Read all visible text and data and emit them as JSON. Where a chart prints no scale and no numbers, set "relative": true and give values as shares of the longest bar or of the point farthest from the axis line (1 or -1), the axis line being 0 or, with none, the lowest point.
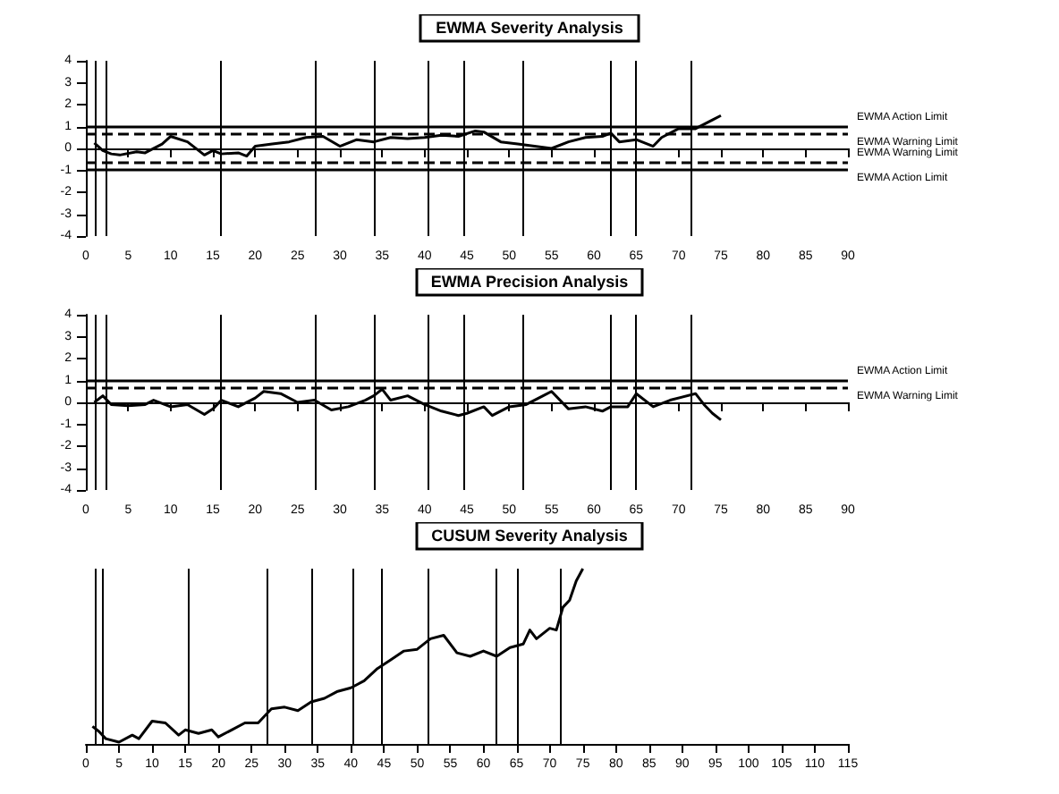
{
  "chart_data": [
    {
      "type": "line",
      "title": "EWMA Severity Analysis",
      "color": "#000000",
      "x": [
        1,
        2,
        3,
        4,
        6,
        7,
        9,
        10,
        12,
        14,
        15,
        16,
        18,
        19,
        20,
        22,
        24,
        26,
        28,
        30,
        32,
        34,
        36,
        38,
        40,
        42,
        44,
        46,
        47,
        49,
        51,
        53,
        55,
        57,
        59,
        61,
        62,
        63,
        65,
        67,
        68,
        70,
        72,
        74,
        75
      ],
      "values": [
        0.25,
        -0.1,
        -0.25,
        -0.3,
        -0.15,
        -0.2,
        0.2,
        0.55,
        0.3,
        -0.3,
        -0.1,
        -0.25,
        -0.2,
        -0.35,
        0.1,
        0.2,
        0.3,
        0.5,
        0.55,
        0.1,
        0.4,
        0.3,
        0.5,
        0.45,
        0.5,
        0.6,
        0.55,
        0.8,
        0.75,
        0.3,
        0.2,
        0.1,
        0,
        0.3,
        0.5,
        0.55,
        0.7,
        0.3,
        0.4,
        0.1,
        0.5,
        0.9,
        0.9,
        1.3,
        1.5
      ],
      "xlim": [
        0,
        90
      ],
      "xticks": [
        0,
        5,
        10,
        15,
        20,
        25,
        30,
        35,
        40,
        45,
        50,
        55,
        60,
        65,
        70,
        75,
        80,
        85,
        90
      ],
      "ylim": [
        -4,
        4
      ],
      "yticks": [
        -4,
        -3,
        -2,
        -1,
        0,
        1,
        2,
        3,
        4
      ],
      "ref_lines": [
        {
          "axis": "y",
          "value": 0.96,
          "label": "EWMA Action Limit",
          "line_style": "solid"
        },
        {
          "axis": "y",
          "value": 0.65,
          "label": "EWMA Warning Limit",
          "line_style": "dashed"
        },
        {
          "axis": "y",
          "value": -0.65,
          "label": "EWMA Warning Limit",
          "line_style": "dashed"
        },
        {
          "axis": "y",
          "value": -0.96,
          "label": "EWMA Action Limit",
          "line_style": "solid"
        },
        {
          "axis": "x",
          "value": 1.2,
          "label": null
        },
        {
          "axis": "x",
          "value": 2.3,
          "label": null
        },
        {
          "axis": "x",
          "value": 15.8,
          "label": null
        },
        {
          "axis": "x",
          "value": 27,
          "label": null
        },
        {
          "axis": "x",
          "value": 34,
          "label": null
        },
        {
          "axis": "x",
          "value": 40.5,
          "label": null
        },
        {
          "axis": "x",
          "value": 44.7,
          "label": null
        },
        {
          "axis": "x",
          "value": 51.7,
          "label": null
        },
        {
          "axis": "x",
          "value": 62,
          "label": null
        },
        {
          "axis": "x",
          "value": 65,
          "label": null
        },
        {
          "axis": "x",
          "value": 71.5,
          "label": null
        }
      ]
    },
    {
      "type": "line",
      "title": "EWMA Precision Analysis",
      "color": "#000000",
      "x": [
        1,
        2,
        3,
        5,
        7,
        8,
        10,
        12,
        14,
        15,
        16,
        18,
        20,
        21,
        23,
        25,
        27,
        29,
        31,
        33,
        34,
        35,
        36,
        38,
        40,
        42,
        44,
        45,
        47,
        48,
        50,
        52,
        54,
        55,
        57,
        59,
        61,
        62,
        64,
        65,
        67,
        69,
        72,
        73,
        74,
        75
      ],
      "values": [
        0,
        0.3,
        -0.1,
        -0.15,
        -0.1,
        0.1,
        -0.2,
        -0.1,
        -0.55,
        -0.3,
        0.1,
        -0.2,
        0.2,
        0.5,
        0.4,
        0,
        0.1,
        -0.35,
        -0.2,
        0.1,
        0.3,
        0.6,
        0.1,
        0.3,
        -0.1,
        -0.4,
        -0.6,
        -0.5,
        -0.2,
        -0.6,
        -0.2,
        -0.1,
        0.3,
        0.5,
        -0.3,
        -0.2,
        -0.4,
        -0.2,
        -0.2,
        0.4,
        -0.2,
        0.1,
        0.4,
        -0.1,
        -0.5,
        -0.8
      ],
      "xlim": [
        0,
        90
      ],
      "xticks": [
        0,
        5,
        10,
        15,
        20,
        25,
        30,
        35,
        40,
        45,
        50,
        55,
        60,
        65,
        70,
        75,
        80,
        85,
        90
      ],
      "ylim": [
        -4,
        4
      ],
      "yticks": [
        -4,
        -3,
        -2,
        -1,
        0,
        1,
        2,
        3,
        4
      ],
      "ref_lines": [
        {
          "axis": "y",
          "value": 0.98,
          "label": "EWMA Action Limit",
          "line_style": "solid"
        },
        {
          "axis": "y",
          "value": 0.65,
          "label": "EWMA Warning Limit",
          "line_style": "dashed"
        },
        {
          "axis": "x",
          "value": 1.2,
          "label": null
        },
        {
          "axis": "x",
          "value": 2.3,
          "label": null
        },
        {
          "axis": "x",
          "value": 15.8,
          "label": null
        },
        {
          "axis": "x",
          "value": 27,
          "label": null
        },
        {
          "axis": "x",
          "value": 34,
          "label": null
        },
        {
          "axis": "x",
          "value": 40.5,
          "label": null
        },
        {
          "axis": "x",
          "value": 44.7,
          "label": null
        },
        {
          "axis": "x",
          "value": 51.7,
          "label": null
        },
        {
          "axis": "x",
          "value": 62,
          "label": null
        },
        {
          "axis": "x",
          "value": 65,
          "label": null
        },
        {
          "axis": "x",
          "value": 71.5,
          "label": null
        }
      ]
    },
    {
      "type": "line",
      "title": "CUSUM Severity Analysis",
      "color": "#000000",
      "relative": true,
      "x": [
        1,
        2,
        3,
        5,
        7,
        8,
        10,
        12,
        14,
        15,
        17,
        19,
        20,
        22,
        24,
        26,
        28,
        30,
        32,
        34,
        36,
        38,
        40,
        42,
        44,
        46,
        48,
        50,
        52,
        54,
        56,
        58,
        60,
        62,
        64,
        66,
        67,
        68,
        70,
        71,
        72,
        73,
        74,
        75
      ],
      "values": [
        0.1,
        0.07,
        0.03,
        0.01,
        0.05,
        0.03,
        0.13,
        0.12,
        0.05,
        0.08,
        0.06,
        0.08,
        0.04,
        0.08,
        0.12,
        0.12,
        0.2,
        0.21,
        0.19,
        0.24,
        0.26,
        0.3,
        0.32,
        0.36,
        0.43,
        0.48,
        0.53,
        0.54,
        0.6,
        0.62,
        0.52,
        0.5,
        0.53,
        0.5,
        0.55,
        0.57,
        0.65,
        0.6,
        0.66,
        0.65,
        0.78,
        0.82,
        0.93,
        1.0
      ],
      "xlim": [
        0,
        115
      ],
      "xticks": [
        0,
        5,
        10,
        15,
        20,
        25,
        30,
        35,
        40,
        45,
        50,
        55,
        60,
        65,
        70,
        75,
        80,
        85,
        90,
        95,
        100,
        105,
        110,
        115
      ],
      "ref_lines": [
        {
          "axis": "x",
          "value": 1.3,
          "label": null
        },
        {
          "axis": "x",
          "value": 2.4,
          "label": null
        },
        {
          "axis": "x",
          "value": 15.5,
          "label": null
        },
        {
          "axis": "x",
          "value": 27.2,
          "label": null
        },
        {
          "axis": "x",
          "value": 34,
          "label": null
        },
        {
          "axis": "x",
          "value": 40.3,
          "label": null
        },
        {
          "axis": "x",
          "value": 44.5,
          "label": null
        },
        {
          "axis": "x",
          "value": 51.6,
          "label": null
        },
        {
          "axis": "x",
          "value": 62,
          "label": null
        },
        {
          "axis": "x",
          "value": 65,
          "label": null
        },
        {
          "axis": "x",
          "value": 71.6,
          "label": null
        }
      ]
    }
  ]
}
